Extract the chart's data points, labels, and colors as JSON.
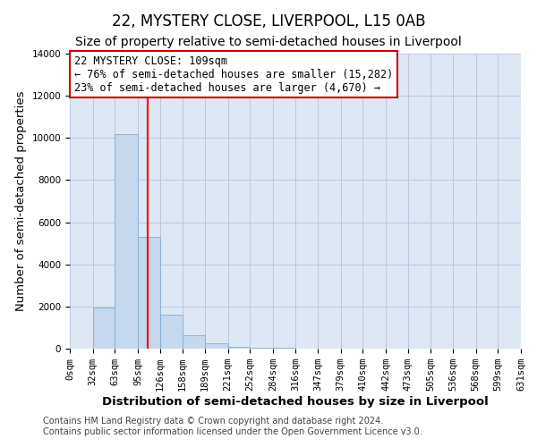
{
  "title": "22, MYSTERY CLOSE, LIVERPOOL, L15 0AB",
  "subtitle": "Size of property relative to semi-detached houses in Liverpool",
  "xlabel": "Distribution of semi-detached houses by size in Liverpool",
  "ylabel": "Number of semi-detached properties",
  "bin_edges": [
    0,
    32,
    63,
    95,
    126,
    158,
    189,
    221,
    252,
    284,
    316,
    347,
    379,
    410,
    442,
    473,
    505,
    536,
    568,
    599,
    631
  ],
  "bar_heights": [
    0,
    1950,
    10200,
    5300,
    1600,
    650,
    250,
    100,
    50,
    30,
    10,
    5,
    2,
    1,
    0,
    0,
    0,
    0,
    0,
    0
  ],
  "bar_color": "#c5d8ee",
  "bar_edge_color": "#7aafd4",
  "red_line_x": 109,
  "ylim": [
    0,
    14000
  ],
  "yticks": [
    0,
    2000,
    4000,
    6000,
    8000,
    10000,
    12000,
    14000
  ],
  "tick_labels": [
    "0sqm",
    "32sqm",
    "63sqm",
    "95sqm",
    "126sqm",
    "158sqm",
    "189sqm",
    "221sqm",
    "252sqm",
    "284sqm",
    "316sqm",
    "347sqm",
    "379sqm",
    "410sqm",
    "442sqm",
    "473sqm",
    "505sqm",
    "536sqm",
    "568sqm",
    "599sqm",
    "631sqm"
  ],
  "annotation_title": "22 MYSTERY CLOSE: 109sqm",
  "annotation_line1": "← 76% of semi-detached houses are smaller (15,282)",
  "annotation_line2": "23% of semi-detached houses are larger (4,670) →",
  "annotation_box_color": "#ffffff",
  "annotation_box_edge": "#cc0000",
  "footer1": "Contains HM Land Registry data © Crown copyright and database right 2024.",
  "footer2": "Contains public sector information licensed under the Open Government Licence v3.0.",
  "fig_bg_color": "#ffffff",
  "plot_bg_color": "#dde8f5",
  "grid_color": "#b8c8e0",
  "title_fontsize": 12,
  "subtitle_fontsize": 10,
  "axis_label_fontsize": 9.5,
  "tick_fontsize": 7.5,
  "annotation_fontsize": 8.5,
  "footer_fontsize": 7
}
